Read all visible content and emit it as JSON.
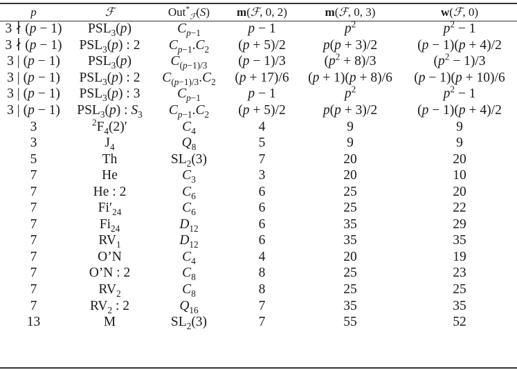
{
  "table": {
    "headers": [
      {
        "html": "<i>p</i>"
      },
      {
        "html": "<i>&#8497;</i>"
      },
      {
        "html": "Out<sup>*</sup><sub><i>&#8497;</i></sub>(<i>S</i>)"
      },
      {
        "html": "<b>m</b>(<i>&#8497;</i>, 0, 2)"
      },
      {
        "html": "<b>m</b>(<i>&#8497;</i>, 0, 3)"
      },
      {
        "html": "<b>w</b>(<i>&#8497;</i>, 0)"
      }
    ],
    "rows": [
      [
        "3 &#8740; (<i>p</i> &#8722; 1)",
        "PSL<sub>3</sub>(<i>p</i>)",
        "<i>C</i><sub><i>p</i>&#8722;1</sub>",
        "<i>p</i> &#8722; 1",
        "<i>p</i><sup>2</sup>",
        "<i>p</i><sup>2</sup> &#8722; 1"
      ],
      [
        "3 &#8740; (<i>p</i> &#8722; 1)",
        "PSL<sub>3</sub>(<i>p</i>) : 2",
        "<i>C</i><sub><i>p</i>&#8722;1</sub>.<i>C</i><sub>2</sub>",
        "(<i>p</i> + 5)/2",
        "<i>p</i>(<i>p</i> + 3)/2",
        "(<i>p</i> &#8722; 1)(<i>p</i> + 4)/2"
      ],
      [
        "3 | (<i>p</i> &#8722; 1)",
        "PSL<sub>3</sub>(<i>p</i>)",
        "<i>C</i><sub>(<i>p</i>&#8722;1)/3</sub>",
        "(<i>p</i> &#8722; 1)/3",
        "(<i>p</i><sup>2</sup> + 8)/3",
        "(<i>p</i><sup>2</sup> &#8722; 1)/3"
      ],
      [
        "3 | (<i>p</i> &#8722; 1)",
        "PSL<sub>3</sub>(<i>p</i>) : 2",
        "<i>C</i><sub>(<i>p</i>&#8722;1)/3</sub>.<i>C</i><sub>2</sub>",
        "(<i>p</i> + 17)/6",
        "(<i>p</i> + 1)(<i>p</i> + 8)/6",
        "(<i>p</i> &#8722; 1)(<i>p</i> + 10)/6"
      ],
      [
        "3 | (<i>p</i> &#8722; 1)",
        "PSL<sub>3</sub>(<i>p</i>) : 3",
        "<i>C</i><sub><i>p</i>&#8722;1</sub>",
        "<i>p</i> &#8722; 1",
        "<i>p</i><sup>2</sup>",
        "<i>p</i><sup>2</sup> &#8722; 1"
      ],
      [
        "3 | (<i>p</i> &#8722; 1)",
        "PSL<sub>3</sub>(<i>p</i>) : <i>S</i><sub>3</sub>",
        "<i>C</i><sub><i>p</i>&#8722;1</sub>.<i>C</i><sub>2</sub>",
        "(<i>p</i> + 5)/2",
        "<i>p</i>(<i>p</i> + 3)/2",
        "(<i>p</i> &#8722; 1)(<i>p</i> + 4)/2"
      ],
      [
        "3",
        "<sup>2</sup>F<sub>4</sub>(2)&#8242;",
        "<i>C</i><sub>4</sub>",
        "4",
        "9",
        "9"
      ],
      [
        "3",
        "J<sub>4</sub>",
        "<i>Q</i><sub>8</sub>",
        "5",
        "9",
        "9"
      ],
      [
        "5",
        "Th",
        "SL<sub>2</sub>(3)",
        "7",
        "20",
        "20"
      ],
      [
        "7",
        "He",
        "<i>C</i><sub>3</sub>",
        "3",
        "20",
        "10"
      ],
      [
        "7",
        "He : 2",
        "<i>C</i><sub>6</sub>",
        "6",
        "25",
        "20"
      ],
      [
        "7",
        "Fi&#8242;<sub>24</sub>",
        "<i>C</i><sub>6</sub>",
        "6",
        "25",
        "22"
      ],
      [
        "7",
        "Fi<sub>24</sub>",
        "<i>D</i><sub>12</sub>",
        "6",
        "35",
        "29"
      ],
      [
        "7",
        "RV<sub>1</sub>",
        "<i>D</i><sub>12</sub>",
        "6",
        "35",
        "35"
      ],
      [
        "7",
        "O&#8217;N",
        "<i>C</i><sub>4</sub>",
        "4",
        "20",
        "19"
      ],
      [
        "7",
        "O&#8217;N : 2",
        "<i>C</i><sub>8</sub>",
        "8",
        "25",
        "23"
      ],
      [
        "7",
        "RV<sub>2</sub>",
        "<i>C</i><sub>8</sub>",
        "8",
        "25",
        "25"
      ],
      [
        "7",
        "RV<sub>2</sub> : 2",
        "<i>Q</i><sub>16</sub>",
        "7",
        "35",
        "35"
      ],
      [
        "13",
        "M",
        "SL<sub>2</sub>(3)",
        "7",
        "55",
        "52"
      ]
    ]
  }
}
